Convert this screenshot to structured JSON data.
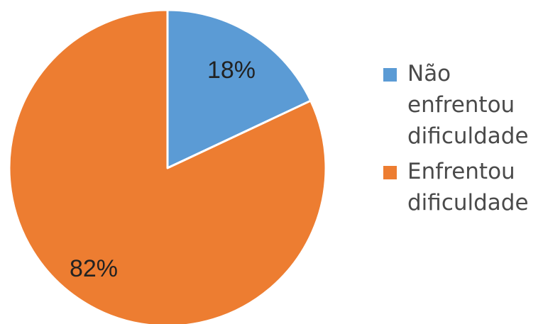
{
  "chart_data": {
    "type": "pie",
    "categories": [
      "Não enfrentou dificuldade",
      "Enfrentou dificuldade"
    ],
    "values": [
      18,
      82
    ],
    "data_labels": [
      "18%",
      "82%"
    ],
    "colors": [
      "#5B9BD5",
      "#ED7D31"
    ],
    "title": "",
    "legend": {
      "position": "right",
      "items": [
        {
          "label": "Não enfrentou dificuldade",
          "color": "#5B9BD5"
        },
        {
          "label": "Enfrentou dificuldade",
          "color": "#ED7D31"
        }
      ]
    }
  }
}
